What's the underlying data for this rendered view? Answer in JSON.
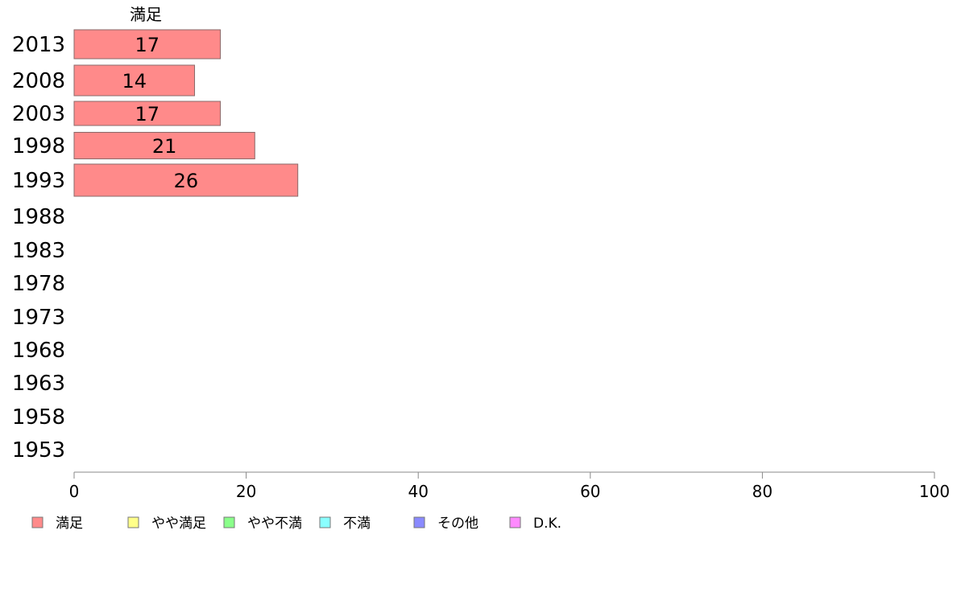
{
  "chart_data": {
    "type": "bar",
    "orientation": "horizontal",
    "stacked": true,
    "header": "満足",
    "categories": [
      "2013",
      "2008",
      "2003",
      "1998",
      "1993",
      "1988",
      "1983",
      "1978",
      "1973",
      "1968",
      "1963",
      "1958",
      "1953"
    ],
    "series": [
      {
        "name": "満足",
        "color": "#ff8a8a",
        "values": [
          17,
          14,
          17,
          21,
          26,
          null,
          null,
          null,
          null,
          null,
          null,
          null,
          null
        ]
      },
      {
        "name": "やや満足",
        "color": "#ffff8a",
        "values": [
          null,
          null,
          null,
          null,
          null,
          null,
          null,
          null,
          null,
          null,
          null,
          null,
          null
        ]
      },
      {
        "name": "やや不満",
        "color": "#8aff8a",
        "values": [
          null,
          null,
          null,
          null,
          null,
          null,
          null,
          null,
          null,
          null,
          null,
          null,
          null
        ]
      },
      {
        "name": "不満",
        "color": "#8affff",
        "values": [
          null,
          null,
          null,
          null,
          null,
          null,
          null,
          null,
          null,
          null,
          null,
          null,
          null
        ]
      },
      {
        "name": "その他",
        "color": "#8a8aff",
        "values": [
          null,
          null,
          null,
          null,
          null,
          null,
          null,
          null,
          null,
          null,
          null,
          null,
          null
        ]
      },
      {
        "name": "D.K.",
        "color": "#ff8aff",
        "values": [
          null,
          null,
          null,
          null,
          null,
          null,
          null,
          null,
          null,
          null,
          null,
          null,
          null
        ]
      }
    ],
    "xlim": [
      0,
      100
    ],
    "xticks": [
      "0",
      "20",
      "40",
      "60",
      "80",
      "100"
    ],
    "grid": false,
    "legend_position": "bottom"
  }
}
